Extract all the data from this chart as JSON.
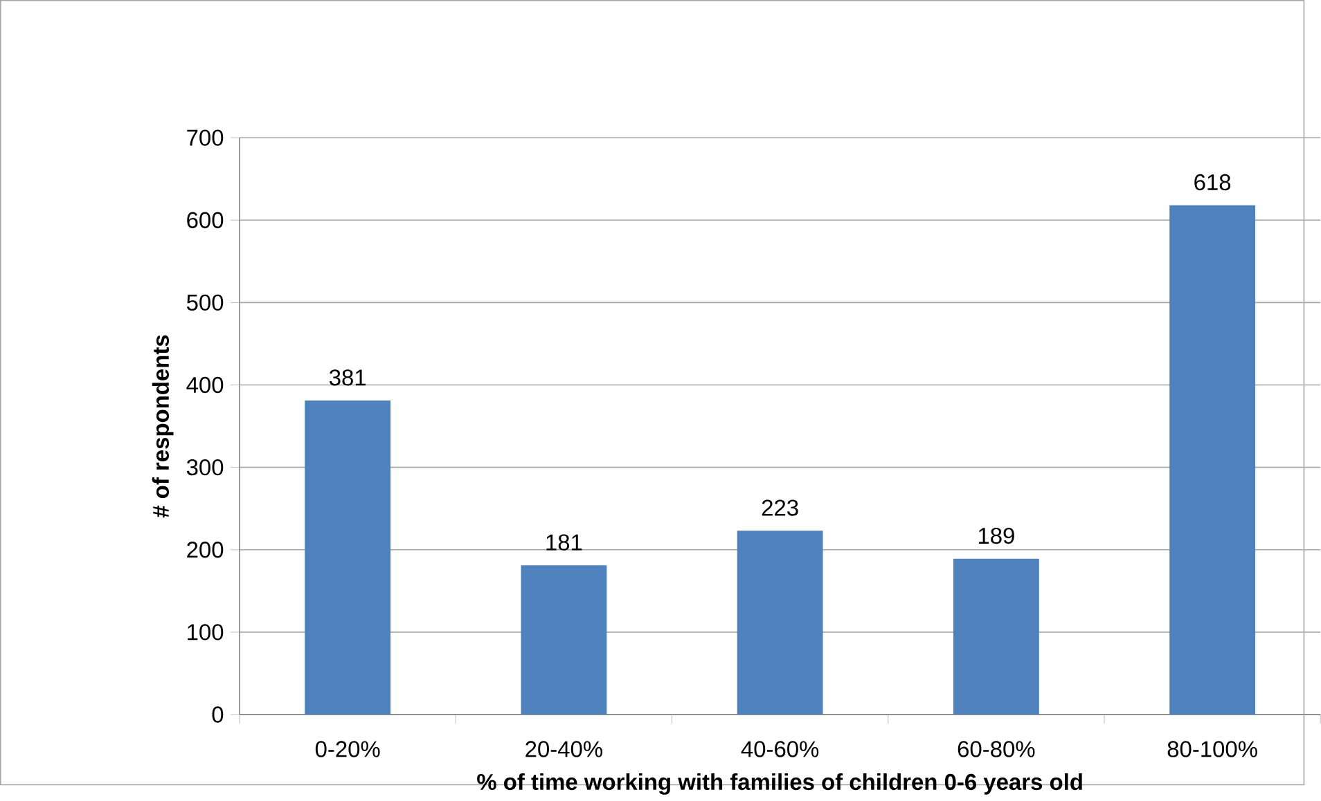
{
  "chart_data": {
    "type": "bar",
    "xlabel": "% of time working with families of children 0-6 years old",
    "ylabel": "# of respondents",
    "categories": [
      "0-20%",
      "20-40%",
      "40-60%",
      "60-80%",
      "80-100%"
    ],
    "values": [
      381,
      181,
      223,
      189,
      618
    ],
    "color": "#4f81bd",
    "ylim": [
      0,
      700
    ],
    "yticks": [
      0,
      100,
      200,
      300,
      400,
      500,
      600,
      700
    ],
    "grid": "y",
    "data_labels": true
  }
}
